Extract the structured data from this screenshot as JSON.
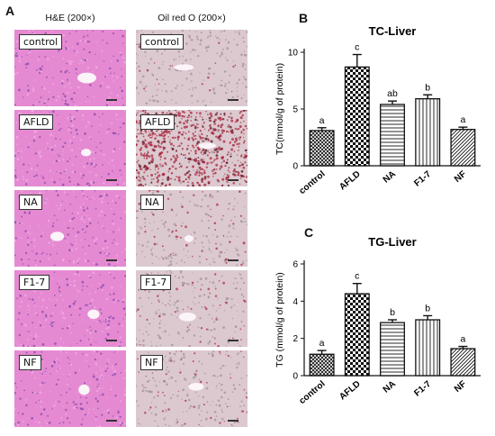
{
  "panel_labels": {
    "a": "A",
    "b": "B",
    "c": "C"
  },
  "micrographs": {
    "col_left_title": "H&E (200×)",
    "col_right_title": "Oil red O (200×)",
    "rows": [
      "control",
      "AFLD",
      "NA",
      "F1-7",
      "NF"
    ],
    "stain_colors": {
      "he": "#e58ad2",
      "oil_red_o": "#dcc9cf",
      "lipid": "#a8253d"
    },
    "lipid_density": [
      0.15,
      0.85,
      0.3,
      0.25,
      0.3
    ]
  },
  "chart_data": [
    {
      "type": "bar",
      "title": "TC-Liver",
      "ylabel": "TC(mmol/g of protein)",
      "categories": [
        "control",
        "AFLD",
        "NA",
        "F1-7",
        "NF"
      ],
      "values": [
        3.1,
        8.7,
        5.4,
        5.9,
        3.2
      ],
      "errors": [
        0.25,
        1.1,
        0.3,
        0.35,
        0.2
      ],
      "letters": [
        "a",
        "c",
        "ab",
        "b",
        "a"
      ],
      "patterns": [
        "cross",
        "check",
        "hlines",
        "vlines",
        "diagonal"
      ],
      "ylim": [
        0,
        10
      ],
      "yticks": [
        0,
        5,
        10
      ],
      "grid": false
    },
    {
      "type": "bar",
      "title": "TG-Liver",
      "ylabel": "TG (mmol/g of protein)",
      "categories": [
        "control",
        "AFLD",
        "NA",
        "F1-7",
        "NF"
      ],
      "values": [
        1.15,
        4.4,
        2.85,
        3.0,
        1.45
      ],
      "errors": [
        0.2,
        0.55,
        0.15,
        0.22,
        0.12
      ],
      "letters": [
        "a",
        "c",
        "b",
        "b",
        "a"
      ],
      "patterns": [
        "cross",
        "check",
        "hlines",
        "vlines",
        "diagonal"
      ],
      "ylim": [
        0,
        6
      ],
      "yticks": [
        0,
        2,
        4,
        6
      ],
      "grid": false
    }
  ]
}
